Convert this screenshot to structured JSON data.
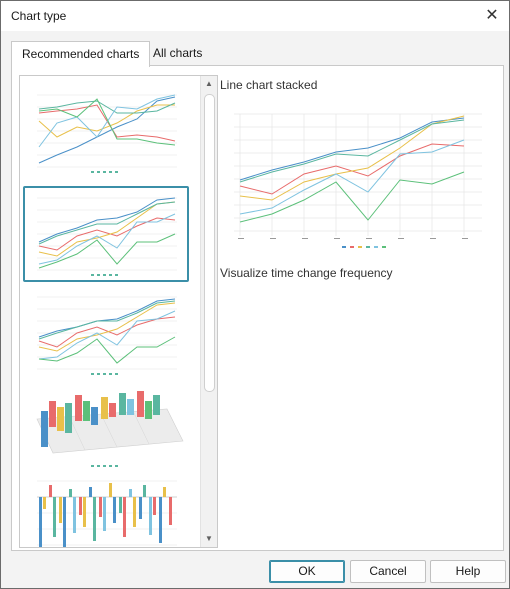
{
  "dialog": {
    "title": "Chart type",
    "close_glyph": "✕"
  },
  "tabs": [
    {
      "label": "Recommended charts",
      "active": true
    },
    {
      "label": "All charts",
      "active": false
    }
  ],
  "thumbnails": [
    {
      "name": "line-chart",
      "selected": false
    },
    {
      "name": "line-chart-stacked",
      "selected": true
    },
    {
      "name": "line-chart-stacked-percent",
      "selected": false
    },
    {
      "name": "3d-column-chart",
      "selected": false
    },
    {
      "name": "column-chart",
      "selected": false
    }
  ],
  "preview": {
    "title": "Line chart stacked",
    "description": "Visualize time change frequency"
  },
  "scrollbar": {
    "up_glyph": "▲",
    "down_glyph": "▼"
  },
  "buttons": {
    "ok": "OK",
    "cancel": "Cancel",
    "help": "Help"
  },
  "colors": {
    "accent": "#3b8fa8",
    "series": [
      "#4a90c8",
      "#e86b6b",
      "#e8c04a",
      "#5ab6a0",
      "#7fc3e0",
      "#5cc07a"
    ]
  }
}
